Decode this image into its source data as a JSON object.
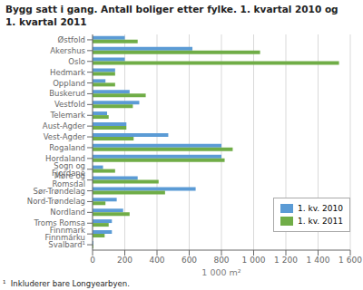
{
  "chart_data": {
    "type": "bar",
    "orientation": "horizontal",
    "title": "Bygg satt i gang. Antall boliger etter fylke. 1. kvartal 2010 og\n1. kvartal 2011",
    "xlabel": "1 000 m²",
    "annotations": [
      "¹  Inkluderer bare Longyearbyen."
    ],
    "categories": [
      "Svalbard¹",
      "Finnmark Finnmárku",
      "Troms Romsa",
      "Nordland",
      "Nord-Trøndelag",
      "Sør-Trøndelag",
      "Møre og Romsdal",
      "Sogn og Fjordane",
      "Hordaland",
      "Rogaland",
      "Vest-Agder",
      "Aust-Agder",
      "Telemark",
      "Vestfold",
      "Buskerud",
      "Oppland",
      "Hedmark",
      "Oslo",
      "Akershus",
      "Østfold"
    ],
    "series": [
      {
        "name": "1. kv. 2010",
        "color": "#5b9bd5",
        "values": [
          5,
          120,
          120,
          190,
          150,
          640,
          280,
          65,
          800,
          800,
          470,
          210,
          90,
          290,
          230,
          80,
          140,
          200,
          620,
          200
        ]
      },
      {
        "name": "1. kv. 2011",
        "color": "#70ad47",
        "values": [
          5,
          75,
          100,
          230,
          80,
          450,
          410,
          140,
          820,
          870,
          255,
          210,
          100,
          250,
          330,
          140,
          140,
          1530,
          1040,
          280
        ]
      }
    ],
    "xlim": [
      0,
      1600
    ],
    "xticks": [
      0,
      200,
      400,
      600,
      800,
      {
        "value": 1000,
        "label": "1 000"
      },
      {
        "value": 1200,
        "label": "1 200"
      },
      {
        "value": 1400,
        "label": "1 400"
      },
      {
        "value": 1600,
        "label": "1 600"
      }
    ],
    "grid": true,
    "legend": "lower right"
  }
}
